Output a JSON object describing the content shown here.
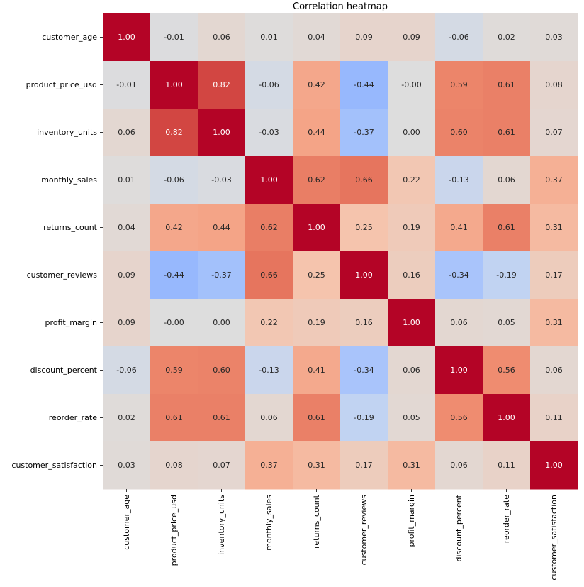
{
  "chart_data": {
    "type": "heatmap",
    "title": "Correlation heatmap",
    "colormap": "coolwarm",
    "vmin": -1,
    "vmax": 1,
    "annotated": true,
    "value_format": "0.00",
    "colorbar": false,
    "rows": [
      "customer_age",
      "product_price_usd",
      "inventory_units",
      "monthly_sales",
      "returns_count",
      "customer_reviews",
      "profit_margin",
      "discount_percent",
      "reorder_rate",
      "customer_satisfaction"
    ],
    "columns": [
      "customer_age",
      "product_price_usd",
      "inventory_units",
      "monthly_sales",
      "returns_count",
      "customer_reviews",
      "profit_margin",
      "discount_percent",
      "reorder_rate",
      "customer_satisfaction"
    ],
    "values": [
      [
        1.0,
        -0.01,
        0.06,
        0.01,
        0.04,
        0.09,
        0.09,
        -0.06,
        0.02,
        0.03
      ],
      [
        -0.01,
        1.0,
        0.82,
        -0.06,
        0.42,
        -0.44,
        -0.0,
        0.59,
        0.61,
        0.08
      ],
      [
        0.06,
        0.82,
        1.0,
        -0.03,
        0.44,
        -0.37,
        0.0,
        0.6,
        0.61,
        0.07
      ],
      [
        0.01,
        -0.06,
        -0.03,
        1.0,
        0.62,
        0.66,
        0.22,
        -0.13,
        0.06,
        0.37
      ],
      [
        0.04,
        0.42,
        0.44,
        0.62,
        1.0,
        0.25,
        0.19,
        0.41,
        0.61,
        0.31
      ],
      [
        0.09,
        -0.44,
        -0.37,
        0.66,
        0.25,
        1.0,
        0.16,
        -0.34,
        -0.19,
        0.17
      ],
      [
        0.09,
        -0.0,
        0.0,
        0.22,
        0.19,
        0.16,
        1.0,
        0.06,
        0.05,
        0.31
      ],
      [
        -0.06,
        0.59,
        0.6,
        -0.13,
        0.41,
        -0.34,
        0.06,
        1.0,
        0.56,
        0.06
      ],
      [
        0.02,
        0.61,
        0.61,
        0.06,
        0.61,
        -0.19,
        0.05,
        0.56,
        1.0,
        0.11
      ],
      [
        0.03,
        0.08,
        0.07,
        0.37,
        0.31,
        0.17,
        0.31,
        0.06,
        0.11,
        1.0
      ]
    ],
    "labels": [
      [
        "1.00",
        "-0.01",
        "0.06",
        "0.01",
        "0.04",
        "0.09",
        "0.09",
        "-0.06",
        "0.02",
        "0.03"
      ],
      [
        "-0.01",
        "1.00",
        "0.82",
        "-0.06",
        "0.42",
        "-0.44",
        "-0.00",
        "0.59",
        "0.61",
        "0.08"
      ],
      [
        "0.06",
        "0.82",
        "1.00",
        "-0.03",
        "0.44",
        "-0.37",
        "0.00",
        "0.60",
        "0.61",
        "0.07"
      ],
      [
        "0.01",
        "-0.06",
        "-0.03",
        "1.00",
        "0.62",
        "0.66",
        "0.22",
        "-0.13",
        "0.06",
        "0.37"
      ],
      [
        "0.04",
        "0.42",
        "0.44",
        "0.62",
        "1.00",
        "0.25",
        "0.19",
        "0.41",
        "0.61",
        "0.31"
      ],
      [
        "0.09",
        "-0.44",
        "-0.37",
        "0.66",
        "0.25",
        "1.00",
        "0.16",
        "-0.34",
        "-0.19",
        "0.17"
      ],
      [
        "0.09",
        "-0.00",
        "0.00",
        "0.22",
        "0.19",
        "0.16",
        "1.00",
        "0.06",
        "0.05",
        "0.31"
      ],
      [
        "-0.06",
        "0.59",
        "0.60",
        "-0.13",
        "0.41",
        "-0.34",
        "0.06",
        "1.00",
        "0.56",
        "0.06"
      ],
      [
        "0.02",
        "0.61",
        "0.61",
        "0.06",
        "0.61",
        "-0.19",
        "0.05",
        "0.56",
        "1.00",
        "0.11"
      ],
      [
        "0.03",
        "0.08",
        "0.07",
        "0.37",
        "0.31",
        "0.17",
        "0.31",
        "0.06",
        "0.11",
        "1.00"
      ]
    ]
  }
}
